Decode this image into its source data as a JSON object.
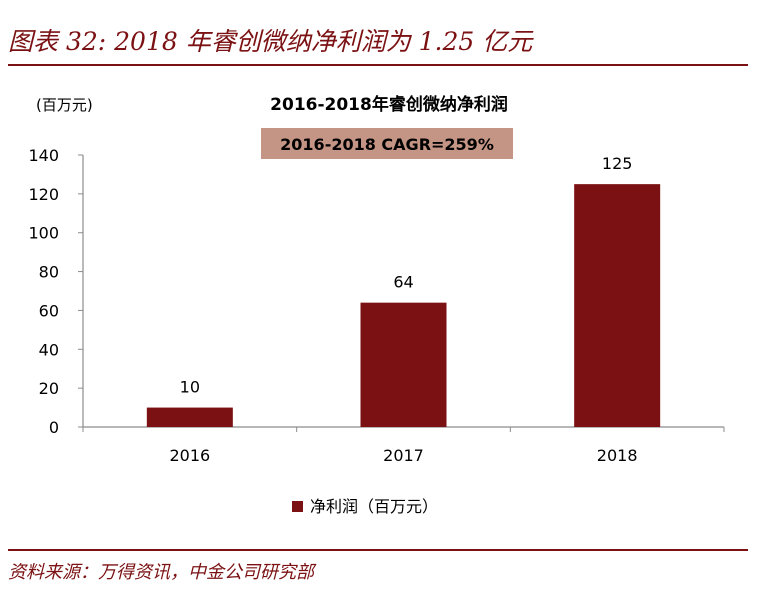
{
  "page": {
    "figure_title": "图表 32: 2018 年睿创微纳净利润为 1.25 亿元",
    "source": "资料来源：万得资讯，中金公司研究部"
  },
  "colors": {
    "bar": "#7b1113",
    "accent": "#7b1113",
    "cagr_box": "#c49585",
    "axis": "#8c8c8c"
  },
  "chart_data": {
    "type": "bar",
    "title": "2016-2018年睿创微纳净利润",
    "annotation": "2016-2018 CAGR=259%",
    "ylabel": "(百万元)",
    "xlabel": "",
    "categories": [
      "2016",
      "2017",
      "2018"
    ],
    "series": [
      {
        "name": "净利润（百万元）",
        "values": [
          10,
          64,
          125
        ]
      }
    ],
    "data_labels": [
      "10",
      "64",
      "125"
    ],
    "ylim": [
      0,
      140
    ],
    "yticks": [
      0,
      20,
      40,
      60,
      80,
      100,
      120,
      140
    ],
    "grid": false,
    "legend_position": "bottom"
  }
}
